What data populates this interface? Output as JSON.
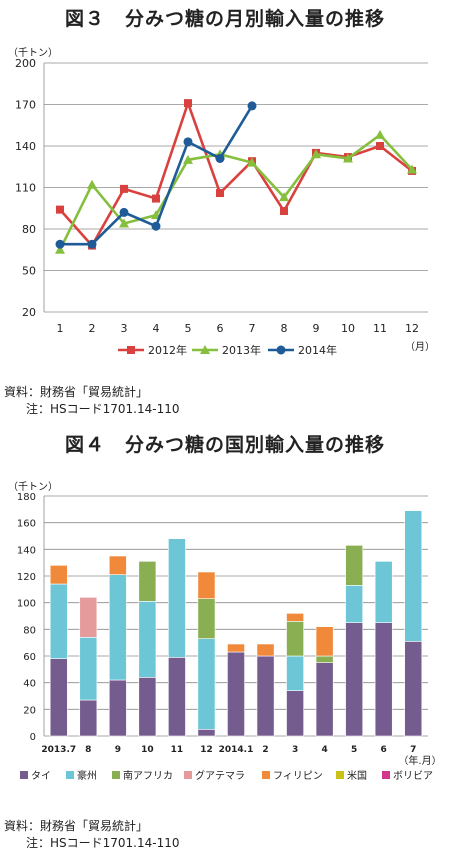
{
  "fig3": {
    "title": "図３　分みつ糖の月別輸入量の推移",
    "unit": "（千トン）",
    "x_unit": "（月）",
    "source": "資料：財務省「貿易統計」",
    "note": "注：HSコード1701.14-110"
  },
  "fig4": {
    "title": "図４　分みつ糖の国別輸入量の推移",
    "unit": "（千トン）",
    "x_unit": "（年.月）",
    "source": "資料：財務省「貿易統計」",
    "note": "注：HSコード1701.14-110"
  },
  "chart_data": [
    {
      "type": "line",
      "title": "図３　分みつ糖の月別輸入量の推移",
      "ylabel": "（千トン）",
      "xlabel": "（月）",
      "ylim": [
        20,
        200
      ],
      "yticks": [
        20,
        50,
        80,
        110,
        140,
        170,
        200
      ],
      "categories": [
        "1",
        "2",
        "3",
        "4",
        "5",
        "6",
        "7",
        "8",
        "9",
        "10",
        "11",
        "12"
      ],
      "grid": true,
      "legend": "bottom",
      "series": [
        {
          "name": "2012年",
          "color": "#d9413f",
          "marker": "square",
          "values": [
            94,
            68,
            109,
            102,
            171,
            106,
            129,
            93,
            135,
            132,
            140,
            122
          ]
        },
        {
          "name": "2013年",
          "color": "#85bf3d",
          "marker": "triangle",
          "values": [
            65,
            112,
            84,
            90,
            130,
            134,
            128,
            103,
            134,
            131,
            148,
            123
          ]
        },
        {
          "name": "2014年",
          "color": "#1f5b97",
          "marker": "circle",
          "values": [
            69,
            69,
            92,
            82,
            143,
            131,
            169,
            null,
            null,
            null,
            null,
            null
          ]
        }
      ]
    },
    {
      "type": "bar",
      "stacked": true,
      "title": "図４　分みつ糖の国別輸入量の推移",
      "ylabel": "（千トン）",
      "xlabel": "（年.月）",
      "ylim": [
        0,
        180
      ],
      "yticks": [
        0,
        20,
        40,
        60,
        80,
        100,
        120,
        140,
        160,
        180
      ],
      "categories": [
        "2013.7",
        "8",
        "9",
        "10",
        "11",
        "12",
        "2014.1",
        "2",
        "3",
        "4",
        "5",
        "6",
        "7"
      ],
      "grid": true,
      "legend": "bottom",
      "series": [
        {
          "name": "タイ",
          "color": "#745c8f",
          "values": [
            58,
            27,
            42,
            44,
            59,
            5,
            63,
            60,
            34,
            55,
            85,
            85,
            71
          ]
        },
        {
          "name": "豪州",
          "color": "#6cc6d6",
          "values": [
            56,
            47,
            79,
            57,
            89,
            68,
            0,
            0,
            26,
            0,
            28,
            46,
            98
          ]
        },
        {
          "name": "南アフリカ",
          "color": "#8aae52",
          "values": [
            0,
            0,
            0,
            30,
            0,
            30,
            0,
            0,
            26,
            5,
            30,
            0,
            0
          ]
        },
        {
          "name": "グアテマラ",
          "color": "#e59b9c",
          "values": [
            0,
            30,
            0,
            0,
            0,
            0,
            0,
            0,
            0,
            0,
            0,
            0,
            0
          ]
        },
        {
          "name": "フィリピン",
          "color": "#f0893a",
          "values": [
            14,
            0,
            14,
            0,
            0,
            20,
            6,
            9,
            6,
            22,
            0,
            0,
            0
          ]
        },
        {
          "name": "米国",
          "color": "#c8c21a",
          "values": [
            0,
            0,
            0,
            0,
            0,
            0,
            0,
            0,
            0,
            0,
            0,
            0,
            0
          ]
        },
        {
          "name": "ボリビア",
          "color": "#d6358c",
          "values": [
            0,
            0,
            0,
            0,
            0,
            0,
            0,
            0,
            0,
            0,
            0,
            0,
            0
          ]
        }
      ]
    }
  ]
}
